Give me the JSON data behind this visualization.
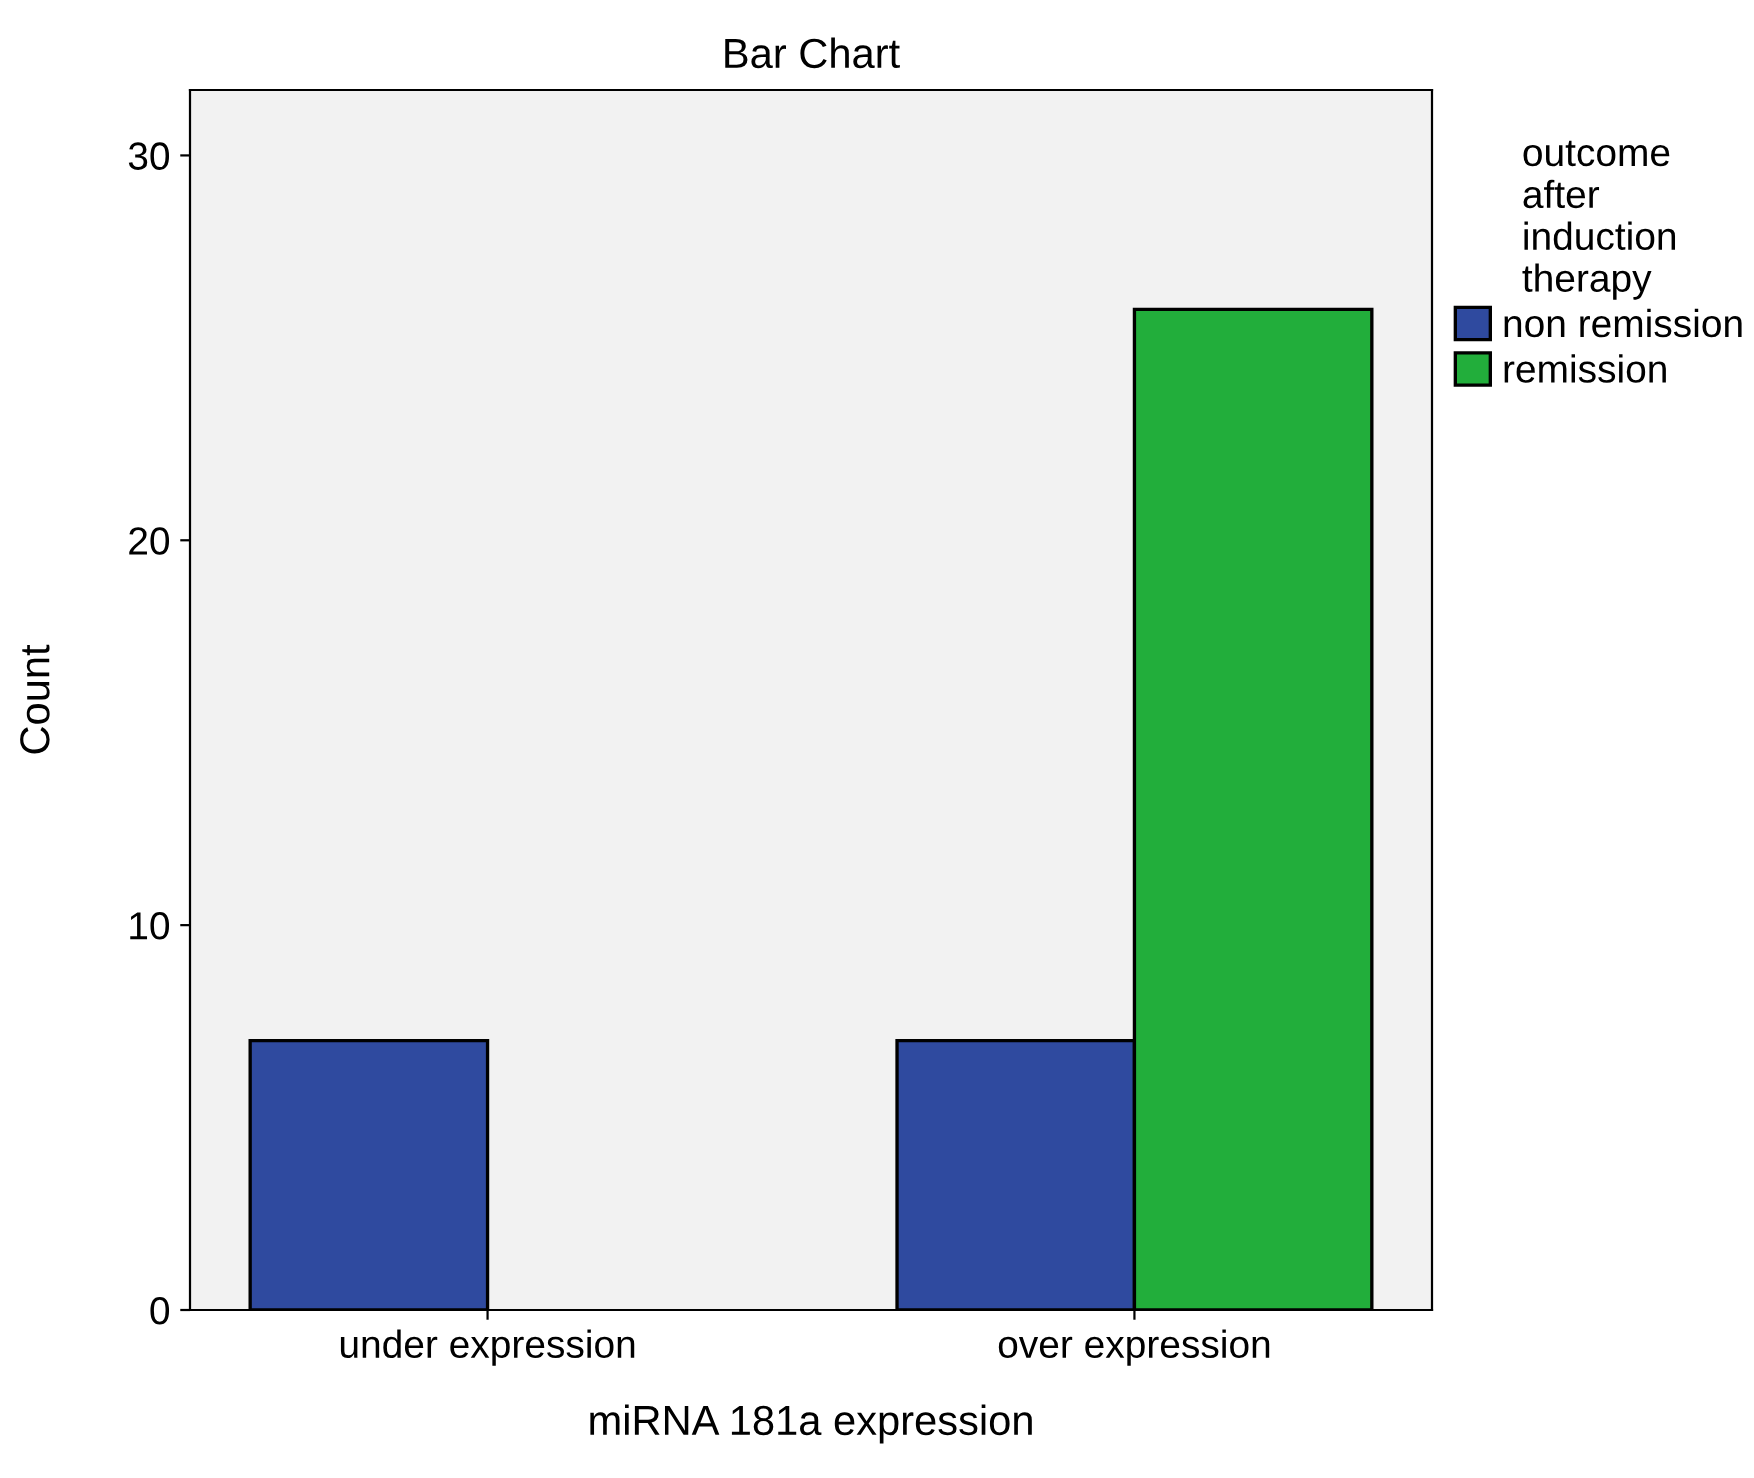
{
  "chart_data": {
    "type": "bar",
    "title": "Bar Chart",
    "xlabel": "miRNA 181a expression",
    "ylabel": "Count",
    "legend_title": "outcome\nafter\ninduction\ntherapy",
    "categories": [
      "under expression",
      "over expression"
    ],
    "series": [
      {
        "name": "non remission",
        "color": "#2f4a9f",
        "values": [
          7,
          7
        ]
      },
      {
        "name": "remission",
        "color": "#22ae3b",
        "values": [
          null,
          26
        ]
      }
    ],
    "ylim": [
      0,
      31.7
    ],
    "yticks": [
      0,
      10,
      20,
      30
    ],
    "grid": false,
    "legend": "right"
  }
}
